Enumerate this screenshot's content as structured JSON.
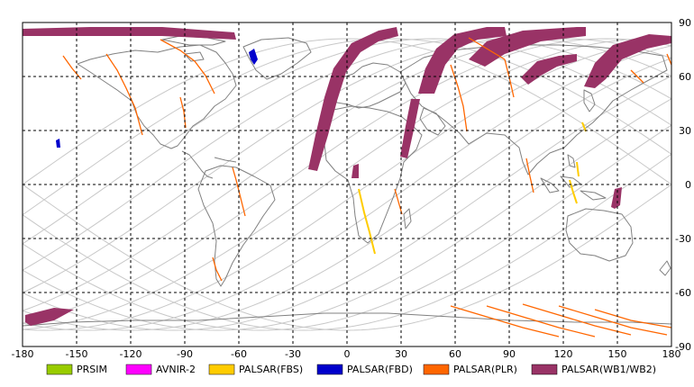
{
  "map": {
    "lon_ticks": [
      -180,
      -150,
      -120,
      -90,
      -60,
      -30,
      0,
      30,
      60,
      90,
      120,
      150,
      180
    ],
    "lat_ticks": [
      90,
      60,
      30,
      0,
      -30,
      -60,
      -90
    ],
    "lon_range": [
      -180,
      180
    ],
    "lat_range": [
      -90,
      90
    ],
    "grid": "dashed",
    "land_color": "#808080",
    "orbit_color": "#c8c8c8"
  },
  "legend": {
    "placement": "bottom",
    "items": [
      {
        "label": "PRSIM",
        "color": "#99cc00"
      },
      {
        "label": "AVNIR-2",
        "color": "#ff00ff"
      },
      {
        "label": "PALSAR(FBS)",
        "color": "#ffcc00"
      },
      {
        "label": "PALSAR(FBD)",
        "color": "#0000cc"
      },
      {
        "label": "PALSAR(PLR)",
        "color": "#ff6600"
      },
      {
        "label": "PALSAR(WB1/WB2)",
        "color": "#993366"
      }
    ]
  }
}
